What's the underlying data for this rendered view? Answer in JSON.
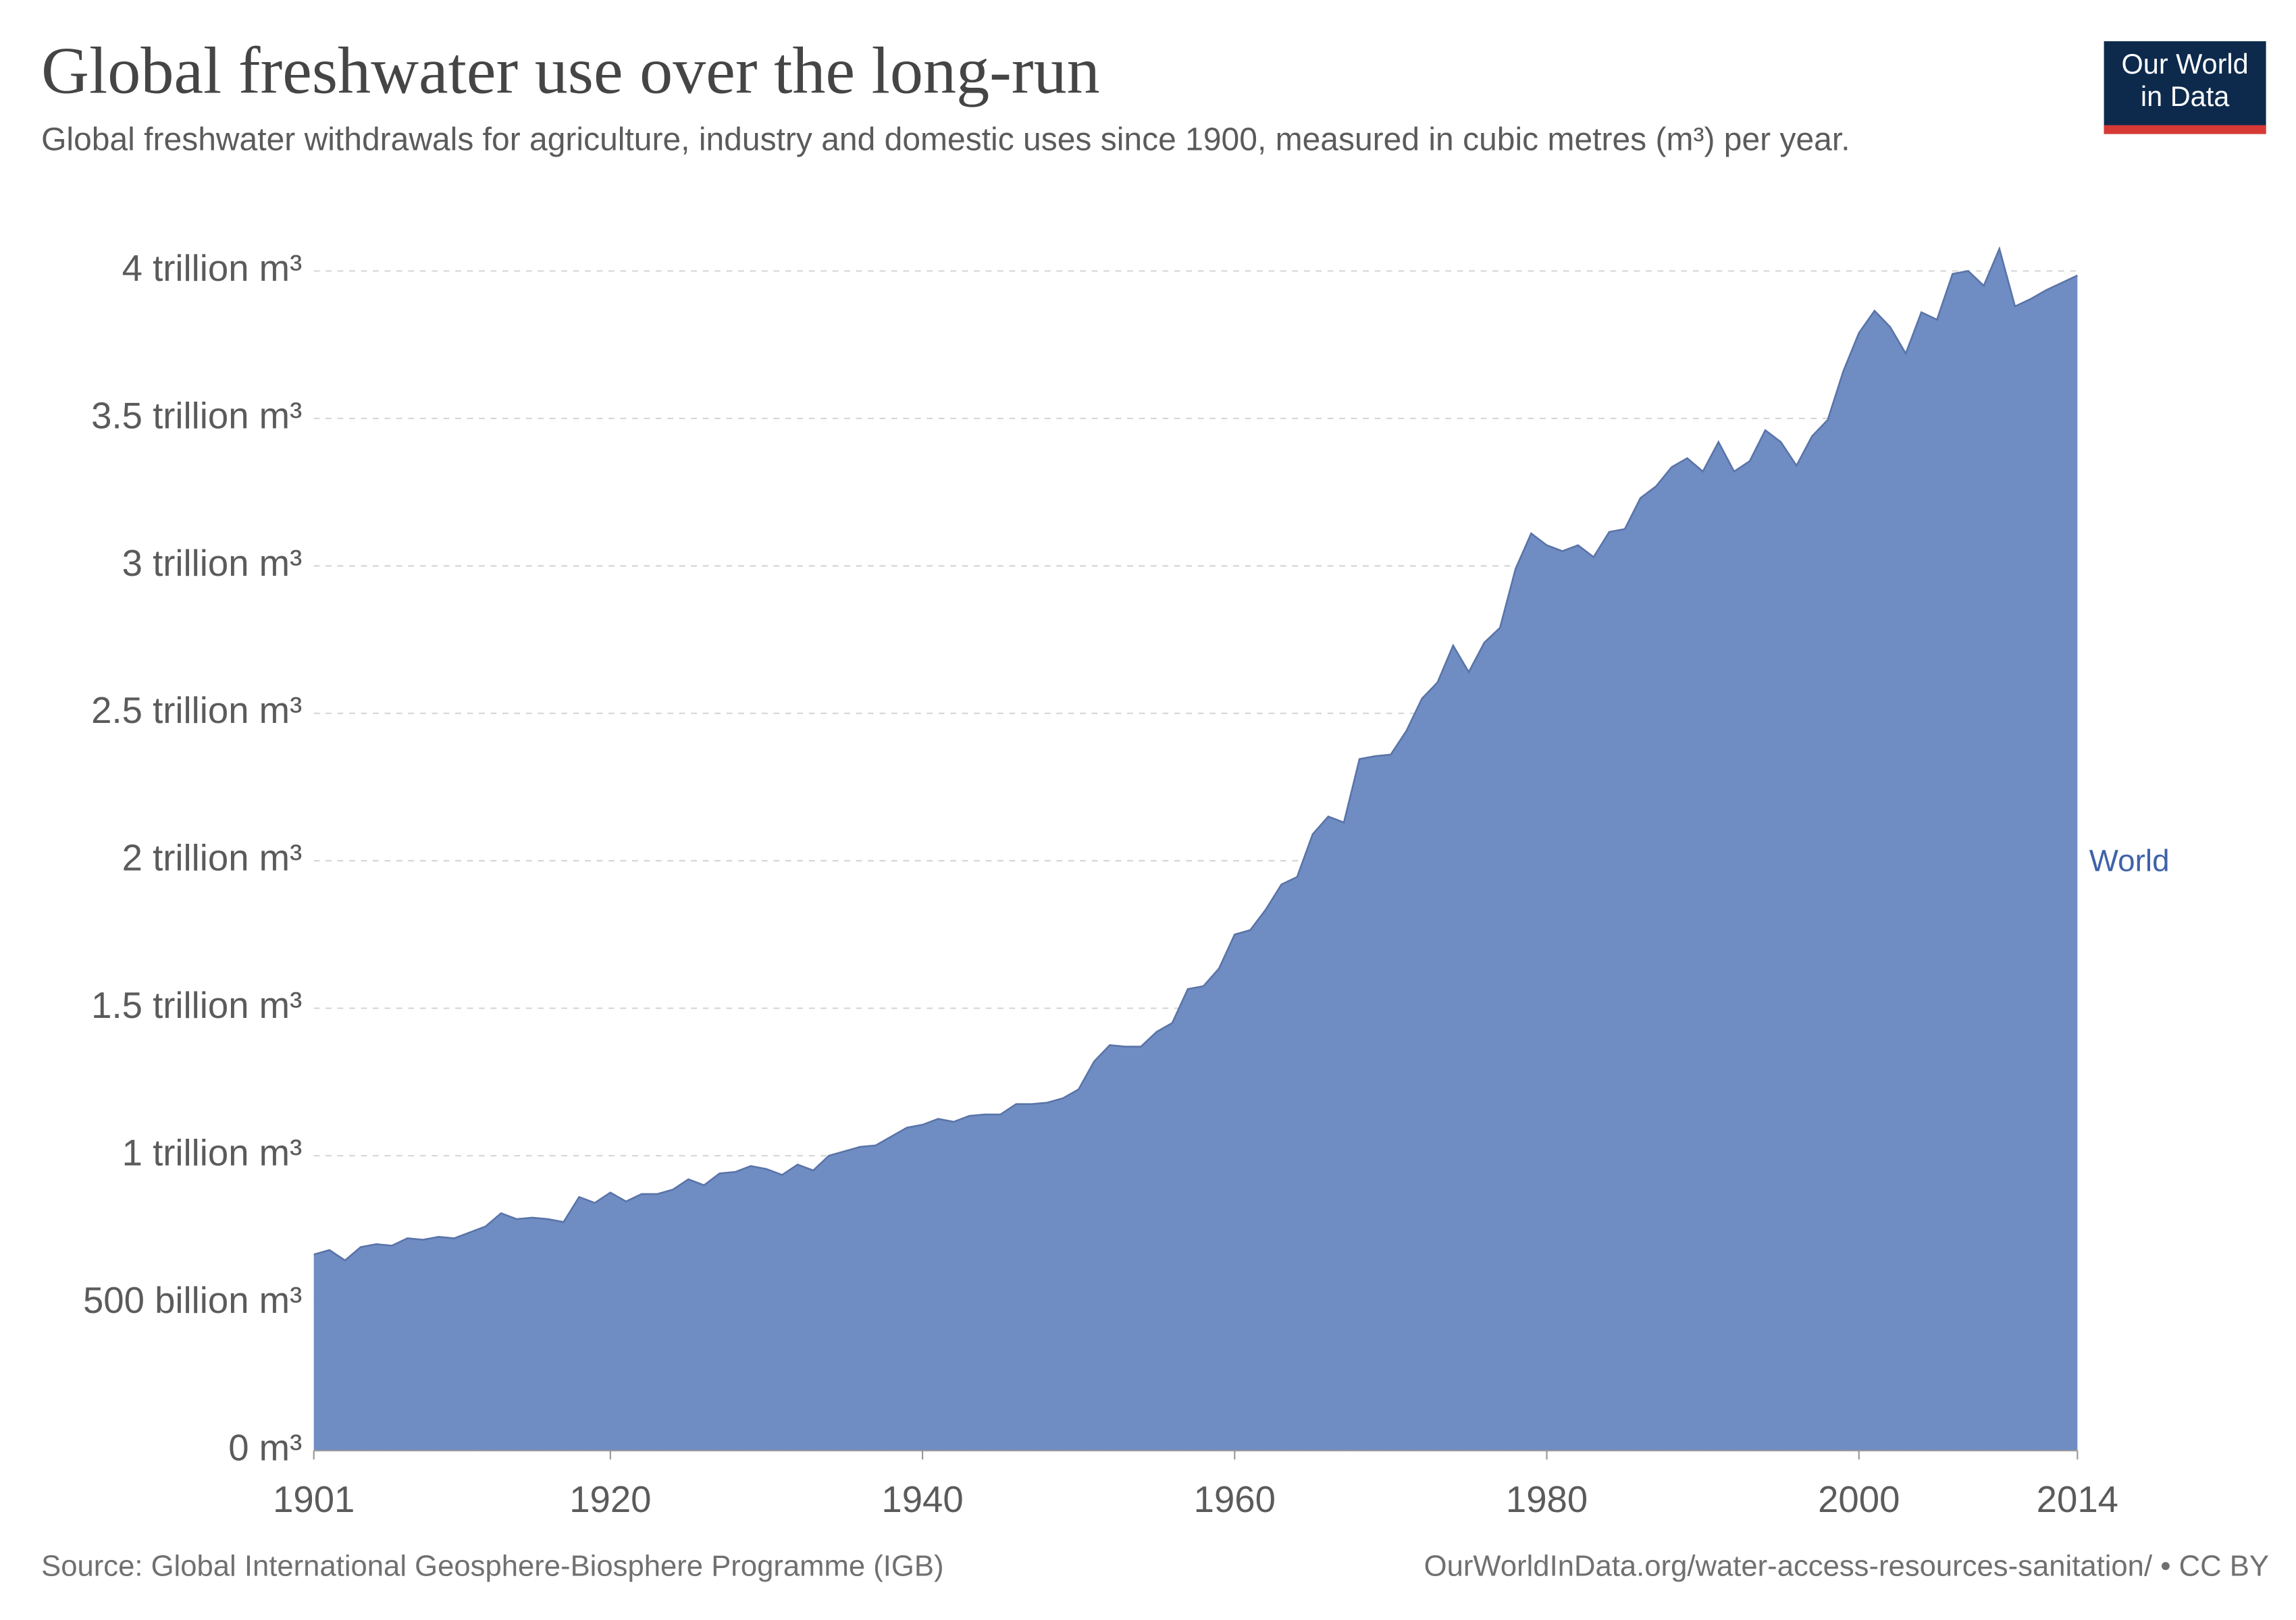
{
  "chart_data": {
    "type": "area",
    "title": "Global freshwater use over the long-run",
    "subtitle": "Global freshwater withdrawals for agriculture, industry and domestic uses since 1900, measured in cubic metres (m³) per year.",
    "source": "Source: Global International Geosphere-Biosphere Programme (IGB)",
    "footer_right": "OurWorldInData.org/water-access-resources-sanitation/ • CC BY",
    "logo": [
      "Our World",
      "in Data"
    ],
    "x": [
      1901,
      1902,
      1903,
      1904,
      1905,
      1906,
      1907,
      1908,
      1909,
      1910,
      1911,
      1912,
      1913,
      1914,
      1915,
      1916,
      1917,
      1918,
      1919,
      1920,
      1921,
      1922,
      1923,
      1924,
      1925,
      1926,
      1927,
      1928,
      1929,
      1930,
      1931,
      1932,
      1933,
      1934,
      1935,
      1936,
      1937,
      1938,
      1939,
      1940,
      1941,
      1942,
      1943,
      1944,
      1945,
      1946,
      1947,
      1948,
      1949,
      1950,
      1951,
      1952,
      1953,
      1954,
      1955,
      1956,
      1957,
      1958,
      1959,
      1960,
      1961,
      1962,
      1963,
      1964,
      1965,
      1966,
      1967,
      1968,
      1969,
      1970,
      1971,
      1972,
      1973,
      1974,
      1975,
      1976,
      1977,
      1978,
      1979,
      1980,
      1981,
      1982,
      1983,
      1984,
      1985,
      1986,
      1987,
      1988,
      1989,
      1990,
      1991,
      1992,
      1993,
      1994,
      1995,
      1996,
      1997,
      1998,
      1999,
      2000,
      2001,
      2002,
      2003,
      2004,
      2005,
      2006,
      2007,
      2008,
      2009,
      2010,
      2011,
      2012,
      2013,
      2014
    ],
    "series": [
      {
        "name": "World",
        "color": "#6f8dc3",
        "values": [
          665000000000.0,
          680000000000.0,
          645000000000.0,
          690000000000.0,
          700000000000.0,
          695000000000.0,
          720000000000.0,
          715000000000.0,
          725000000000.0,
          720000000000.0,
          740000000000.0,
          760000000000.0,
          805000000000.0,
          785000000000.0,
          790000000000.0,
          785000000000.0,
          775000000000.0,
          860000000000.0,
          840000000000.0,
          875000000000.0,
          845000000000.0,
          870000000000.0,
          870000000000.0,
          885000000000.0,
          920000000000.0,
          900000000000.0,
          940000000000.0,
          945000000000.0,
          965000000000.0,
          955000000000.0,
          935000000000.0,
          970000000000.0,
          950000000000.0,
          1000000000000.0,
          1015000000000.0,
          1030000000000.0,
          1035000000000.0,
          1065000000000.0,
          1095000000000.0,
          1105000000000.0,
          1125000000000.0,
          1115000000000.0,
          1135000000000.0,
          1140000000000.0,
          1140000000000.0,
          1175000000000.0,
          1175000000000.0,
          1180000000000.0,
          1195000000000.0,
          1225000000000.0,
          1320000000000.0,
          1375000000000.0,
          1370000000000.0,
          1370000000000.0,
          1420000000000.0,
          1450000000000.0,
          1565000000000.0,
          1575000000000.0,
          1635000000000.0,
          1750000000000.0,
          1765000000000.0,
          1835000000000.0,
          1920000000000.0,
          1945000000000.0,
          2090000000000.0,
          2150000000000.0,
          2130000000000.0,
          2345000000000.0,
          2355000000000.0,
          2360000000000.0,
          2440000000000.0,
          2550000000000.0,
          2605000000000.0,
          2730000000000.0,
          2640000000000.0,
          2740000000000.0,
          2790000000000.0,
          2990000000000.0,
          3110000000000.0,
          3070000000000.0,
          3050000000000.0,
          3070000000000.0,
          3030000000000.0,
          3115000000000.0,
          3125000000000.0,
          3230000000000.0,
          3270000000000.0,
          3335000000000.0,
          3365000000000.0,
          3320000000000.0,
          3420000000000.0,
          3320000000000.0,
          3355000000000.0,
          3460000000000.0,
          3420000000000.0,
          3340000000000.0,
          3440000000000.0,
          3495000000000.0,
          3660000000000.0,
          3790000000000.0,
          3865000000000.0,
          3810000000000.0,
          3720000000000.0,
          3860000000000.0,
          3835000000000.0,
          3990000000000.0,
          4000000000000.0,
          3950000000000.0,
          4075000000000.0,
          3880000000000.0,
          3905000000000.0,
          3935000000000.0,
          3960000000000.0,
          3985000000000.0
        ]
      }
    ],
    "xlim": [
      1901,
      2014
    ],
    "xticks": [
      1901,
      1920,
      1940,
      1960,
      1980,
      2000,
      2014
    ],
    "ylim": [
      0,
      4000000000000.0
    ],
    "yticks": [
      {
        "value": 0,
        "label": "0 m³"
      },
      {
        "value": 500000000000.0,
        "label": "500 billion m³"
      },
      {
        "value": 1000000000000.0,
        "label": "1 trillion m³"
      },
      {
        "value": 1500000000000.0,
        "label": "1.5 trillion m³"
      },
      {
        "value": 2000000000000.0,
        "label": "2 trillion m³"
      },
      {
        "value": 2500000000000.0,
        "label": "2.5 trillion m³"
      },
      {
        "value": 3000000000000.0,
        "label": "3 trillion m³"
      },
      {
        "value": 3500000000000.0,
        "label": "3.5 trillion m³"
      },
      {
        "value": 4000000000000.0,
        "label": "4 trillion m³"
      }
    ],
    "grid": true
  }
}
